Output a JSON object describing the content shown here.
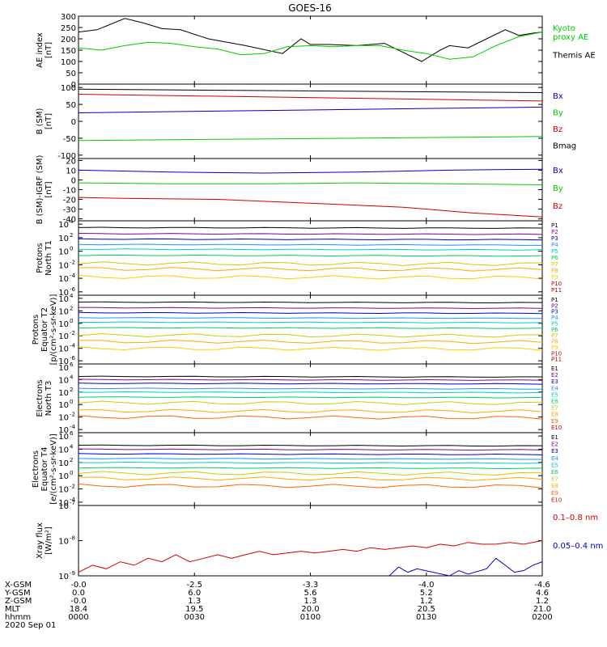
{
  "title": "GOES-16",
  "colors": {
    "black": "#000000",
    "green": "#00cc00",
    "blue": "#0000cc",
    "red": "#cc0000",
    "P": [
      "#000000",
      "#8b008b",
      "#0000cc",
      "#1e90ff",
      "#00cccc",
      "#00cc66",
      "#cccc00",
      "#ffaa00",
      "#ffcc00",
      "#cc0000",
      "#990000"
    ],
    "E": [
      "#000000",
      "#8b008b",
      "#0000cc",
      "#1e90ff",
      "#00cccc",
      "#00cc66",
      "#cccc00",
      "#ffaa00",
      "#ff6600",
      "#cc0000",
      "#990000"
    ]
  },
  "chart_data": [
    {
      "type": "line",
      "id": "ae",
      "ylabel": "AE index\n[nT]",
      "ylim": [
        0,
        300
      ],
      "yticks": [
        0,
        50,
        100,
        150,
        200,
        250,
        300
      ],
      "legend": [
        {
          "name": "Kyoto\nproxy AE",
          "color": "green"
        },
        {
          "name": "Themis AE",
          "color": "black"
        }
      ],
      "series": [
        {
          "color": "black",
          "x": [
            0,
            0.04,
            0.1,
            0.14,
            0.18,
            0.22,
            0.28,
            0.36,
            0.44,
            0.48,
            0.5,
            0.54,
            0.6,
            0.66,
            0.7,
            0.74,
            0.78,
            0.8,
            0.84,
            0.88,
            0.92,
            0.95,
            0.98,
            1.0
          ],
          "y": [
            230,
            240,
            290,
            270,
            245,
            240,
            200,
            170,
            135,
            200,
            175,
            175,
            170,
            180,
            140,
            100,
            150,
            170,
            160,
            200,
            240,
            215,
            225,
            230
          ]
        },
        {
          "color": "green",
          "x": [
            0,
            0.05,
            0.1,
            0.15,
            0.2,
            0.25,
            0.3,
            0.35,
            0.4,
            0.45,
            0.5,
            0.55,
            0.6,
            0.65,
            0.7,
            0.75,
            0.8,
            0.85,
            0.9,
            0.95,
            1.0
          ],
          "y": [
            160,
            150,
            170,
            185,
            180,
            165,
            155,
            130,
            135,
            165,
            170,
            165,
            170,
            170,
            150,
            135,
            110,
            120,
            170,
            210,
            230
          ]
        }
      ]
    },
    {
      "type": "line",
      "id": "bsm",
      "ylabel": "B (SM)\n[nT]",
      "ylim": [
        -110,
        110
      ],
      "yticks": [
        -100,
        -50,
        0,
        50,
        100
      ],
      "legend": [
        {
          "name": "Bx",
          "color": "blue"
        },
        {
          "name": "By",
          "color": "green"
        },
        {
          "name": "Bz",
          "color": "red"
        },
        {
          "name": "Bmag",
          "color": "black"
        }
      ],
      "series": [
        {
          "color": "black",
          "x": [
            0,
            1
          ],
          "y": [
            95,
            85
          ]
        },
        {
          "color": "red",
          "x": [
            0,
            1
          ],
          "y": [
            80,
            60
          ]
        },
        {
          "color": "blue",
          "x": [
            0,
            1
          ],
          "y": [
            25,
            42
          ]
        },
        {
          "color": "green",
          "x": [
            0,
            1
          ],
          "y": [
            -57,
            -45
          ]
        }
      ]
    },
    {
      "type": "line",
      "id": "bigrf",
      "ylabel": "B (SM)-IGRF (SM)\n[nT]",
      "ylim": [
        -42,
        22
      ],
      "yticks": [
        -40,
        -30,
        -20,
        -10,
        0,
        10,
        20
      ],
      "legend": [
        {
          "name": "Bx",
          "color": "blue"
        },
        {
          "name": "By",
          "color": "green"
        },
        {
          "name": "Bz",
          "color": "red"
        }
      ],
      "series": [
        {
          "color": "blue",
          "x": [
            0,
            0.2,
            0.4,
            0.6,
            0.8,
            1
          ],
          "y": [
            10,
            8,
            7,
            8,
            10,
            11
          ]
        },
        {
          "color": "green",
          "x": [
            0,
            0.2,
            0.4,
            0.6,
            0.8,
            1
          ],
          "y": [
            -3,
            -4,
            -4,
            -3,
            -4,
            -5
          ]
        },
        {
          "color": "red",
          "x": [
            0,
            0.1,
            0.3,
            0.5,
            0.7,
            0.85,
            1
          ],
          "y": [
            -18,
            -19,
            -20,
            -24,
            -28,
            -34,
            -38
          ]
        }
      ]
    },
    {
      "type": "line",
      "id": "pn",
      "log": true,
      "ylabel": "Protons\nNorth T1",
      "ylim": [
        -6.5,
        4.5
      ],
      "yticks": [
        -6,
        -4,
        -2,
        0,
        2,
        4
      ],
      "channels": [
        "P1",
        "P2",
        "P3",
        "P4",
        "P5",
        "P6",
        "P7",
        "P8",
        "P9",
        "P10",
        "P11"
      ],
      "levels": [
        3.5,
        2.6,
        1.8,
        1.0,
        0.3,
        -0.6,
        -1.8,
        -2.6,
        -3.8
      ]
    },
    {
      "type": "line",
      "id": "pe",
      "log": true,
      "ylabel": "Protons\nEquator T2\n[p/(cm²-s-sr-keV)]",
      "ylim": [
        -6.5,
        4.5
      ],
      "yticks": [
        -6,
        -4,
        -2,
        0,
        2,
        4
      ],
      "channels": [
        "P1",
        "P2",
        "P3",
        "P4",
        "P5",
        "P6",
        "P7",
        "P8",
        "P9",
        "P10",
        "P11"
      ],
      "levels": [
        3.4,
        2.5,
        1.7,
        0.9,
        0.2,
        -0.7,
        -1.9,
        -2.9,
        -4.0
      ]
    },
    {
      "type": "line",
      "id": "en",
      "log": true,
      "ylabel": "Electrons\nNorth T3",
      "ylim": [
        -4.5,
        6.5
      ],
      "yticks": [
        -4,
        -2,
        0,
        2,
        4,
        6
      ],
      "channels": [
        "E1",
        "E2",
        "E3",
        "E4",
        "E5",
        "E6",
        "E7",
        "E8",
        "E9",
        "E10"
      ],
      "levels": [
        4.5,
        4.0,
        3.4,
        2.6,
        2.0,
        1.2,
        0.3,
        -1.0,
        -2.0
      ]
    },
    {
      "type": "line",
      "id": "ee",
      "log": true,
      "ylabel": "Electrons\nEquator T4\n[e/(cm²-s-sr-keV)]",
      "ylim": [
        -4.5,
        6.5
      ],
      "yticks": [
        -4,
        -2,
        0,
        2,
        4,
        6
      ],
      "channels": [
        "E1",
        "E2",
        "E3",
        "E4",
        "E5",
        "E6",
        "E7",
        "E8",
        "E9",
        "E10"
      ],
      "levels": [
        4.6,
        4.0,
        3.3,
        2.6,
        2.0,
        1.2,
        0.4,
        -0.4,
        -1.5
      ]
    },
    {
      "type": "line",
      "id": "xray",
      "log": true,
      "ylabel": "Xray flux\n[W/m²]",
      "ylim": [
        -9,
        -7
      ],
      "yticks": [
        -9,
        -8,
        -7
      ],
      "legend": [
        {
          "name": "0.1–0.8 nm",
          "color": "red"
        },
        {
          "name": "0.05–0.4 nm",
          "color": "blue"
        }
      ],
      "series": [
        {
          "color": "red",
          "x": [
            0,
            0.03,
            0.06,
            0.09,
            0.12,
            0.15,
            0.18,
            0.21,
            0.24,
            0.27,
            0.3,
            0.33,
            0.36,
            0.39,
            0.42,
            0.45,
            0.48,
            0.51,
            0.54,
            0.57,
            0.6,
            0.63,
            0.66,
            0.69,
            0.72,
            0.75,
            0.78,
            0.81,
            0.84,
            0.87,
            0.9,
            0.93,
            0.96,
            1.0
          ],
          "y": [
            -8.9,
            -8.7,
            -8.8,
            -8.6,
            -8.7,
            -8.5,
            -8.6,
            -8.4,
            -8.6,
            -8.5,
            -8.4,
            -8.5,
            -8.4,
            -8.3,
            -8.4,
            -8.35,
            -8.3,
            -8.35,
            -8.3,
            -8.25,
            -8.3,
            -8.2,
            -8.25,
            -8.2,
            -8.15,
            -8.2,
            -8.1,
            -8.15,
            -8.05,
            -8.1,
            -8.1,
            -8.05,
            -8.1,
            -8.0
          ]
        },
        {
          "color": "blue",
          "x": [
            0.67,
            0.69,
            0.71,
            0.73,
            0.8,
            0.82,
            0.84,
            0.88,
            0.9,
            0.92,
            0.94,
            0.96,
            0.98,
            1.0
          ],
          "y": [
            -9.0,
            -8.75,
            -8.9,
            -8.8,
            -9.0,
            -8.85,
            -8.95,
            -8.8,
            -8.5,
            -8.7,
            -8.9,
            -8.85,
            -8.7,
            -8.6
          ]
        }
      ]
    }
  ],
  "xaxis": {
    "rows": [
      {
        "label": "X-GSM",
        "values": [
          "-0.0",
          "-2.5",
          "-3.3",
          "-4.0",
          "-4.6"
        ]
      },
      {
        "label": "Y-GSM",
        "values": [
          "0.0",
          "6.0",
          "5.6",
          "5.2",
          "4.6"
        ]
      },
      {
        "label": "Z-GSM",
        "values": [
          "-0.0",
          "1.3",
          "1.3",
          "1.2",
          "1.2"
        ]
      },
      {
        "label": "MLT",
        "values": [
          "18.4",
          "19.5",
          "20.0",
          "20.5",
          "21.0"
        ]
      },
      {
        "label": "hhmm",
        "values": [
          "0000",
          "0030",
          "0100",
          "0130",
          "0200"
        ]
      }
    ],
    "date": "2020 Sep 01"
  }
}
